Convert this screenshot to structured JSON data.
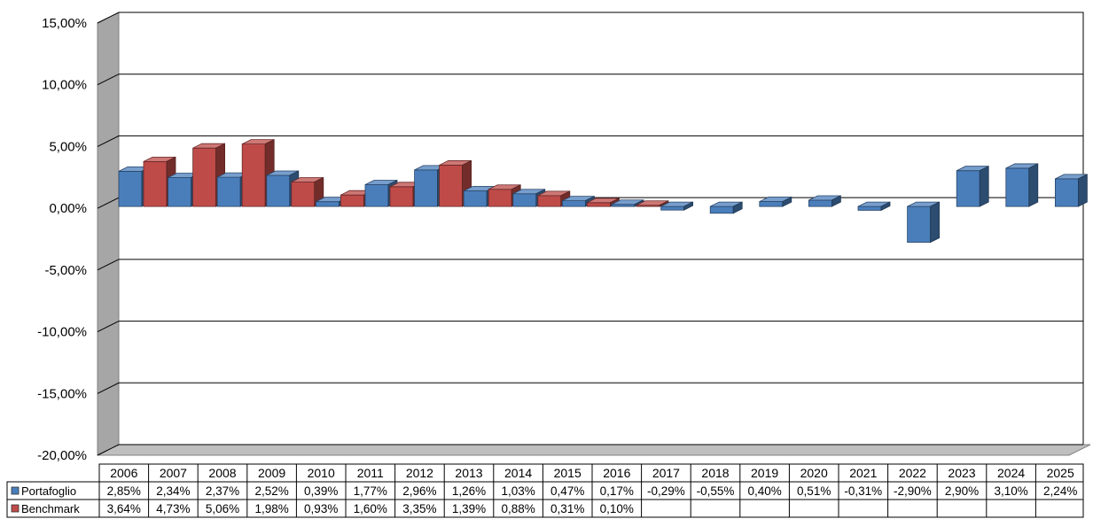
{
  "chart_data": {
    "type": "bar",
    "categories": [
      "2006",
      "2007",
      "2008",
      "2009",
      "2010",
      "2011",
      "2012",
      "2013",
      "2014",
      "2015",
      "2016",
      "2017",
      "2018",
      "2019",
      "2020",
      "2021",
      "2022",
      "2023",
      "2024",
      "2025"
    ],
    "series": [
      {
        "name": "Portafoglio",
        "color": "#4a7ebb",
        "values": [
          2.85,
          2.34,
          2.37,
          2.52,
          0.39,
          1.77,
          2.96,
          1.26,
          1.03,
          0.47,
          0.17,
          -0.29,
          -0.55,
          0.4,
          0.51,
          -0.31,
          -2.9,
          2.9,
          3.1,
          2.24
        ],
        "labels": [
          "2,85%",
          "2,34%",
          "2,37%",
          "2,52%",
          "0,39%",
          "1,77%",
          "2,96%",
          "1,26%",
          "1,03%",
          "0,47%",
          "0,17%",
          "-0,29%",
          "-0,55%",
          "0,40%",
          "0,51%",
          "-0,31%",
          "-2,90%",
          "2,90%",
          "3,10%",
          "2,24%"
        ]
      },
      {
        "name": "Benchmark",
        "color": "#be4b48",
        "values": [
          3.64,
          4.73,
          5.06,
          1.98,
          0.93,
          1.6,
          3.35,
          1.39,
          0.88,
          0.31,
          0.1,
          null,
          null,
          null,
          null,
          null,
          null,
          null,
          null,
          null
        ],
        "labels": [
          "3,64%",
          "4,73%",
          "5,06%",
          "1,98%",
          "0,93%",
          "1,60%",
          "3,35%",
          "1,39%",
          "0,88%",
          "0,31%",
          "0,10%",
          "",
          "",
          "",
          "",
          "",
          "",
          "",
          "",
          ""
        ]
      }
    ],
    "y_ticks": [
      15,
      10,
      5,
      0,
      -5,
      -10,
      -15,
      -20
    ],
    "y_tick_labels": [
      "15,00%",
      "10,00%",
      "5,00%",
      "0,00%",
      "-5,00%",
      "-10,00%",
      "-15,00%",
      "-20,00%"
    ],
    "ylim": [
      -20,
      15
    ],
    "grid": true,
    "legend": "data-table"
  }
}
